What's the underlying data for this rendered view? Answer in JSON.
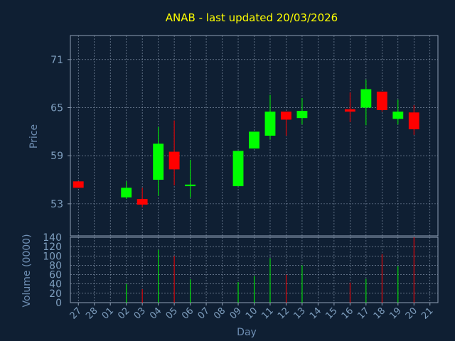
{
  "chart_data": [
    {
      "type": "candlestick",
      "title": "ANAB - last updated 20/03/2026",
      "ylabel": "Price",
      "ylim": [
        49,
        74
      ],
      "yticks": [
        53,
        59,
        65,
        71
      ],
      "grid": true,
      "categories": [
        "27",
        "28",
        "01",
        "02",
        "03",
        "04",
        "05",
        "06",
        "07",
        "08",
        "09",
        "10",
        "11",
        "12",
        "13",
        "14",
        "15",
        "16",
        "17",
        "18",
        "19",
        "20",
        "21"
      ],
      "candles": [
        {
          "x": "27",
          "open": 55.8,
          "high": 55.8,
          "low": 55.0,
          "close": 55.0
        },
        {
          "x": "02",
          "open": 53.8,
          "high": 55.8,
          "low": 53.6,
          "close": 55.0
        },
        {
          "x": "03",
          "open": 53.6,
          "high": 55.0,
          "low": 52.6,
          "close": 52.9
        },
        {
          "x": "04",
          "open": 56.0,
          "high": 62.6,
          "low": 54.0,
          "close": 60.5
        },
        {
          "x": "05",
          "open": 59.5,
          "high": 63.4,
          "low": 55.3,
          "close": 57.3
        },
        {
          "x": "06",
          "open": 55.2,
          "high": 58.5,
          "low": 53.8,
          "close": 55.4
        },
        {
          "x": "09",
          "open": 55.2,
          "high": 59.6,
          "low": 55.2,
          "close": 59.6
        },
        {
          "x": "10",
          "open": 59.9,
          "high": 62.0,
          "low": 59.9,
          "close": 62.0
        },
        {
          "x": "11",
          "open": 61.5,
          "high": 66.6,
          "low": 61.0,
          "close": 64.5
        },
        {
          "x": "12",
          "open": 64.5,
          "high": 64.5,
          "low": 61.5,
          "close": 63.5
        },
        {
          "x": "13",
          "open": 63.7,
          "high": 66.2,
          "low": 62.9,
          "close": 64.6
        },
        {
          "x": "16",
          "open": 64.8,
          "high": 66.9,
          "low": 63.2,
          "close": 64.5
        },
        {
          "x": "17",
          "open": 65.0,
          "high": 68.5,
          "low": 62.8,
          "close": 67.3
        },
        {
          "x": "18",
          "open": 67.0,
          "high": 67.0,
          "low": 64.5,
          "close": 64.7
        },
        {
          "x": "19",
          "open": 63.6,
          "high": 66.0,
          "low": 62.9,
          "close": 64.5
        },
        {
          "x": "20",
          "open": 64.4,
          "high": 65.3,
          "low": 61.6,
          "close": 62.3
        }
      ],
      "colors": {
        "up": "#00ff00",
        "down": "#ff0000",
        "background": "#0f1f33",
        "title": "#ffff00",
        "grid": "#8f9fb5"
      }
    },
    {
      "type": "bar",
      "ylabel": "Volume (0000)",
      "xlabel": "Day",
      "ylim": [
        0,
        140
      ],
      "yticks": [
        0,
        20,
        40,
        60,
        80,
        100,
        120,
        140
      ],
      "categories": [
        "27",
        "28",
        "01",
        "02",
        "03",
        "04",
        "05",
        "06",
        "07",
        "08",
        "09",
        "10",
        "11",
        "12",
        "13",
        "14",
        "15",
        "16",
        "17",
        "18",
        "19",
        "20",
        "21"
      ],
      "bars": [
        {
          "x": "02",
          "value": 40,
          "direction": "up"
        },
        {
          "x": "03",
          "value": 29,
          "direction": "down"
        },
        {
          "x": "04",
          "value": 113,
          "direction": "up"
        },
        {
          "x": "05",
          "value": 100,
          "direction": "down"
        },
        {
          "x": "06",
          "value": 50,
          "direction": "up"
        },
        {
          "x": "09",
          "value": 44,
          "direction": "up"
        },
        {
          "x": "10",
          "value": 57,
          "direction": "up"
        },
        {
          "x": "11",
          "value": 95,
          "direction": "up"
        },
        {
          "x": "12",
          "value": 60,
          "direction": "down"
        },
        {
          "x": "13",
          "value": 80,
          "direction": "up"
        },
        {
          "x": "16",
          "value": 43,
          "direction": "down"
        },
        {
          "x": "17",
          "value": 51,
          "direction": "up"
        },
        {
          "x": "18",
          "value": 104,
          "direction": "down"
        },
        {
          "x": "19",
          "value": 78,
          "direction": "up"
        },
        {
          "x": "20",
          "value": 140,
          "direction": "down"
        }
      ]
    }
  ]
}
